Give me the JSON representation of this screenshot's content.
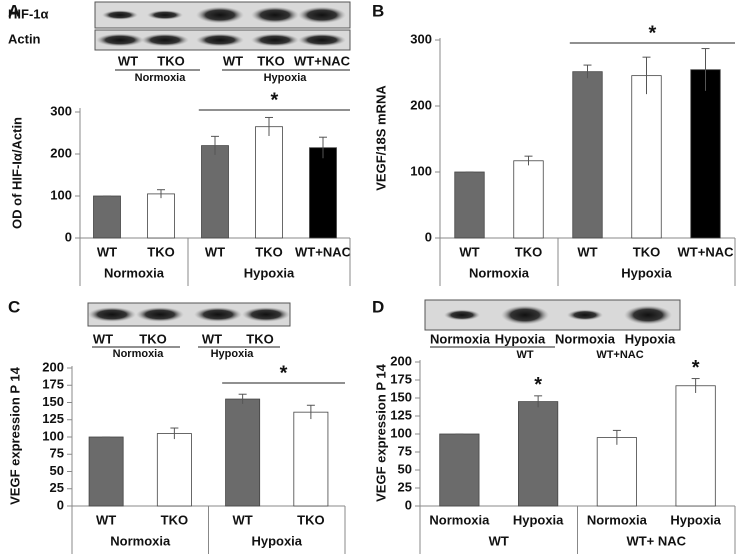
{
  "chart_data": [
    {
      "type": "bar",
      "panel": "A",
      "y_label": "OD of  HIF-Iα/Actin",
      "ylim": [
        0,
        300
      ],
      "yticks": [
        0,
        100,
        200,
        300
      ],
      "groups": [
        {
          "name": "Normoxia",
          "categories": [
            "WT",
            "TKO"
          ],
          "values": [
            100,
            105
          ],
          "errors": [
            0,
            10
          ],
          "colors": [
            "#6b6b6b",
            "#ffffff"
          ]
        },
        {
          "name": "Hypoxia",
          "categories": [
            "WT",
            "TKO",
            "WT+NAC"
          ],
          "values": [
            220,
            265,
            215
          ],
          "errors": [
            22,
            22,
            25
          ],
          "colors": [
            "#6b6b6b",
            "#ffffff",
            "#000000"
          ]
        }
      ],
      "annotations": [
        "*"
      ],
      "blot": {
        "rows": [
          "HIF-1α",
          "Actin"
        ],
        "lanes": [
          "WT",
          "TKO",
          "WT",
          "TKO",
          "WT+NAC"
        ],
        "groups": [
          "Normoxia",
          "Hypoxia"
        ]
      }
    },
    {
      "type": "bar",
      "panel": "B",
      "y_label": "VEGF/18S mRNA",
      "ylim": [
        0,
        300
      ],
      "yticks": [
        0,
        100,
        200,
        300
      ],
      "groups": [
        {
          "name": "Normoxia",
          "categories": [
            "WT",
            "TKO"
          ],
          "values": [
            100,
            117
          ],
          "errors": [
            0,
            7
          ],
          "colors": [
            "#6b6b6b",
            "#ffffff"
          ]
        },
        {
          "name": "Hypoxia",
          "categories": [
            "WT",
            "TKO",
            "WT+NAC"
          ],
          "values": [
            252,
            246,
            255
          ],
          "errors": [
            10,
            28,
            32
          ],
          "colors": [
            "#6b6b6b",
            "#ffffff",
            "#000000"
          ]
        }
      ],
      "annotations": [
        "*"
      ]
    },
    {
      "type": "bar",
      "panel": "C",
      "y_label": "VEGF expression P 14",
      "ylim": [
        0,
        200
      ],
      "yticks": [
        0,
        25,
        50,
        75,
        100,
        125,
        150,
        175,
        200
      ],
      "groups": [
        {
          "name": "Normoxia",
          "categories": [
            "WT",
            "TKO"
          ],
          "values": [
            100,
            105
          ],
          "errors": [
            0,
            8
          ],
          "colors": [
            "#6b6b6b",
            "#ffffff"
          ]
        },
        {
          "name": "Hypoxia",
          "categories": [
            "WT",
            "TKO"
          ],
          "values": [
            155,
            136
          ],
          "errors": [
            7,
            10
          ],
          "colors": [
            "#6b6b6b",
            "#ffffff"
          ]
        }
      ],
      "annotations": [
        "*"
      ],
      "blot": {
        "lanes": [
          "WT",
          "TKO",
          "WT",
          "TKO"
        ],
        "groups": [
          "Normoxia",
          "Hypoxia"
        ]
      }
    },
    {
      "type": "bar",
      "panel": "D",
      "y_label": "VEGF expression P 14",
      "ylim": [
        0,
        200
      ],
      "yticks": [
        0,
        25,
        50,
        75,
        100,
        125,
        150,
        175,
        200
      ],
      "groups": [
        {
          "name": "WT",
          "categories": [
            "Normoxia",
            "Hypoxia"
          ],
          "values": [
            100,
            145
          ],
          "errors": [
            0,
            8
          ],
          "colors": [
            "#6b6b6b",
            "#6b6b6b"
          ]
        },
        {
          "name": "WT+ NAC",
          "categories": [
            "Normoxia",
            "Hypoxia"
          ],
          "values": [
            95,
            167
          ],
          "errors": [
            10,
            10
          ],
          "colors": [
            "#ffffff",
            "#ffffff"
          ]
        }
      ],
      "annotations": [
        "*",
        "*"
      ],
      "blot": {
        "lanes": [
          "Normoxia",
          "Hypoxia",
          "Normoxia",
          "Hypoxia"
        ],
        "groups": [
          "WT",
          "WT+NAC"
        ]
      }
    }
  ]
}
